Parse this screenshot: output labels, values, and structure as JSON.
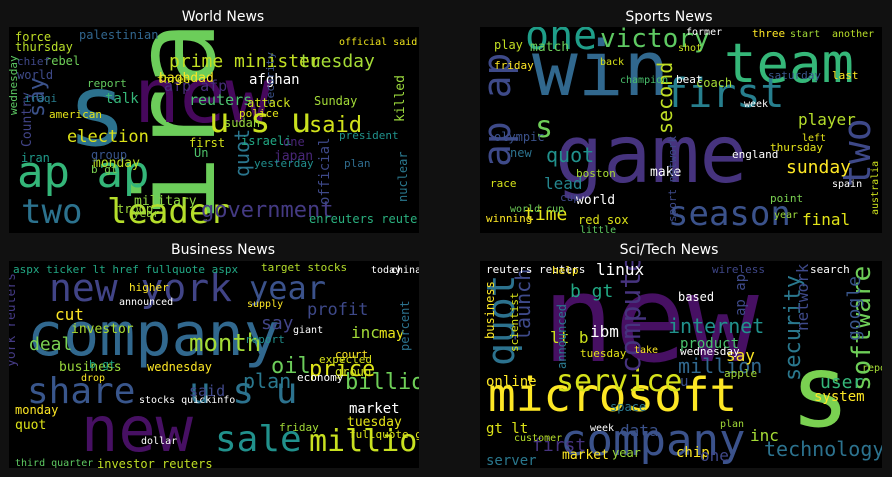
{
  "panels": [
    {
      "id": "world",
      "title": "World News",
      "words": [
        {
          "t": "iraq",
          "c": "#6ccd5a"
        },
        {
          "t": "new",
          "c": "#46085c"
        },
        {
          "t": "s",
          "c": "#2c728e"
        },
        {
          "t": "ap ap",
          "c": "#34b679"
        },
        {
          "t": "two",
          "c": "#2c728e"
        },
        {
          "t": "leader",
          "c": "#b5de2b"
        },
        {
          "t": "government",
          "c": "#443a83"
        },
        {
          "t": "said",
          "c": "#d2e21b"
        },
        {
          "t": "u s u",
          "c": "#cae11f"
        },
        {
          "t": "prime minister",
          "c": "#c2df23"
        },
        {
          "t": "tuesday",
          "c": "#a5db36"
        },
        {
          "t": "election",
          "c": "#dde318"
        },
        {
          "t": "reuters",
          "c": "#4ac16d"
        },
        {
          "t": "say",
          "c": "#3b528b"
        },
        {
          "t": "monday",
          "c": "#bddf26"
        },
        {
          "t": "afp afp",
          "c": "#472d7b"
        },
        {
          "t": "Sunday",
          "c": "#a2da37"
        },
        {
          "t": "quot",
          "c": "#2a768e"
        },
        {
          "t": "talk",
          "c": "#35b779"
        },
        {
          "t": "palestinian",
          "c": "#31668e"
        },
        {
          "t": "force",
          "c": "#c0df25"
        },
        {
          "t": "baghdad",
          "c": "#fde725"
        },
        {
          "t": "afghan",
          "c": "#ffffff"
        },
        {
          "t": "killed",
          "c": "#9bd93c"
        },
        {
          "t": "sudan",
          "c": "#98d83e"
        },
        {
          "t": "israeli",
          "c": "#22a884"
        },
        {
          "t": "iran",
          "c": "#1f9a8a"
        },
        {
          "t": "japan",
          "c": "#482677"
        },
        {
          "t": "military",
          "c": "#8fd744"
        },
        {
          "t": "nuclear",
          "c": "#2a788e"
        },
        {
          "t": "official",
          "c": "#3e4989"
        },
        {
          "t": "Country",
          "c": "#414487"
        },
        {
          "t": "thursday",
          "c": "#b8de29"
        },
        {
          "t": "wednesday",
          "c": "#5cc863"
        },
        {
          "t": "world",
          "c": "#3e4a89"
        },
        {
          "t": "troop",
          "c": "#9dd93b"
        },
        {
          "t": "group",
          "c": "#39558c"
        },
        {
          "t": "first",
          "c": "#d5e21a"
        },
        {
          "t": "police",
          "c": "#e2e418"
        },
        {
          "t": "yesterday",
          "c": "#218f8d"
        },
        {
          "t": "year",
          "c": "#9ad93d"
        },
        {
          "t": "three",
          "c": "#d8e219"
        },
        {
          "t": "security",
          "c": "#3b528b"
        },
        {
          "t": "b gt",
          "c": "#7ad151"
        },
        {
          "t": "rebel",
          "c": "#6ece58"
        },
        {
          "t": "report",
          "c": "#63cb5f"
        },
        {
          "t": "attack",
          "c": "#cde11d"
        },
        {
          "t": "plan",
          "c": "#2f6c8e"
        },
        {
          "t": "Un",
          "c": "#4ec36b"
        },
        {
          "t": "one",
          "c": "#482576"
        },
        {
          "t": "american",
          "c": "#e5e419"
        },
        {
          "t": "iraqi",
          "c": "#287d8e"
        },
        {
          "t": "enreuters reuters",
          "c": "#2ab07f"
        },
        {
          "t": "president",
          "c": "#20928c"
        },
        {
          "t": "chief",
          "c": "#3f4788"
        },
        {
          "t": "official said",
          "c": "#efe51c"
        }
      ]
    },
    {
      "id": "sports",
      "title": "Sports News",
      "words": [
        {
          "t": "game",
          "c": "#46337e"
        },
        {
          "t": "win",
          "c": "#31688e"
        },
        {
          "t": "team",
          "c": "#35b779"
        },
        {
          "t": "one",
          "c": "#1f9e89"
        },
        {
          "t": "victory",
          "c": "#5ec962"
        },
        {
          "t": "first",
          "c": "#277f8e"
        },
        {
          "t": "season",
          "c": "#3b528b"
        },
        {
          "t": "two",
          "c": "#3e4989"
        },
        {
          "t": "ap ap",
          "c": "#3e4a89"
        },
        {
          "t": "s",
          "c": "#6ece58"
        },
        {
          "t": "quot",
          "c": "#21918c"
        },
        {
          "t": "lead",
          "c": "#24868e"
        },
        {
          "t": "time",
          "c": "#e7e419"
        },
        {
          "t": "sunday",
          "c": "#fde725"
        },
        {
          "t": "player",
          "c": "#b5de2b"
        },
        {
          "t": "final",
          "c": "#e2e418"
        },
        {
          "t": "second",
          "c": "#c0df25"
        },
        {
          "t": "match",
          "c": "#6ccd5a"
        },
        {
          "t": "play",
          "c": "#c2df23"
        },
        {
          "t": "friday",
          "c": "#fde725"
        },
        {
          "t": "olympic",
          "c": "#3b528b"
        },
        {
          "t": "new",
          "c": "#2c728e"
        },
        {
          "t": "world",
          "c": "#ffffff"
        },
        {
          "t": "make",
          "c": "#ffffff"
        },
        {
          "t": "red sox",
          "c": "#dde318"
        },
        {
          "t": "saturday",
          "c": "#39568c"
        },
        {
          "t": "last",
          "c": "#fde725"
        },
        {
          "t": "coach",
          "c": "#a5db36"
        },
        {
          "t": "cup",
          "c": "#3f4788"
        },
        {
          "t": "england",
          "c": "#ffffff"
        },
        {
          "t": "thursday",
          "c": "#e5e419"
        },
        {
          "t": "boston",
          "c": "#a8db34"
        },
        {
          "t": "winning",
          "c": "#fde725"
        },
        {
          "t": "beat",
          "c": "#ffffff"
        },
        {
          "t": "australia",
          "c": "#cde11d"
        },
        {
          "t": "spain",
          "c": "#ffffff"
        },
        {
          "t": "three",
          "c": "#fde725"
        },
        {
          "t": "start",
          "c": "#a2da37"
        },
        {
          "t": "another",
          "c": "#b8de29"
        },
        {
          "t": "week",
          "c": "#ffffff"
        },
        {
          "t": "left",
          "c": "#e5e419"
        },
        {
          "t": "back",
          "c": "#d8e219"
        },
        {
          "t": "champion",
          "c": "#4ac16d"
        },
        {
          "t": "race",
          "c": "#d5e21a"
        },
        {
          "t": "world cup",
          "c": "#6ece58"
        },
        {
          "t": "point",
          "c": "#7ad151"
        },
        {
          "t": "year",
          "c": "#9bd93c"
        },
        {
          "t": "former",
          "c": "#ffffff"
        },
        {
          "t": "shot",
          "c": "#c8e020"
        },
        {
          "t": "little",
          "c": "#5ec962"
        },
        {
          "t": "sport network",
          "c": "#3e4a89"
        }
      ]
    },
    {
      "id": "business",
      "title": "Business News",
      "words": [
        {
          "t": "company",
          "c": "#31688e"
        },
        {
          "t": "new york",
          "c": "#414487"
        },
        {
          "t": "year",
          "c": "#3b528b"
        },
        {
          "t": "share",
          "c": "#39568c"
        },
        {
          "t": "new",
          "c": "#471063"
        },
        {
          "t": "sale",
          "c": "#21918c"
        },
        {
          "t": "million",
          "c": "#c8e020"
        },
        {
          "t": "u s u",
          "c": "#2c728e"
        },
        {
          "t": "billion",
          "c": "#6ece58"
        },
        {
          "t": "month",
          "c": "#a5db36"
        },
        {
          "t": "price",
          "c": "#dde318"
        },
        {
          "t": "oil",
          "c": "#6ccd5a"
        },
        {
          "t": "plan",
          "c": "#2a788e"
        },
        {
          "t": "say",
          "c": "#414487"
        },
        {
          "t": "said",
          "c": "#3f4788"
        },
        {
          "t": "deal",
          "c": "#7ad151"
        },
        {
          "t": "profit",
          "c": "#3e4989"
        },
        {
          "t": "inc",
          "c": "#a2da37"
        },
        {
          "t": "may",
          "c": "#e7e419"
        },
        {
          "t": "investor",
          "c": "#aadc32"
        },
        {
          "t": "cut",
          "c": "#fde725"
        },
        {
          "t": "business",
          "c": "#9bd93c"
        },
        {
          "t": "market",
          "c": "#ffffff"
        },
        {
          "t": "tuesday",
          "c": "#e5e419"
        },
        {
          "t": "monday",
          "c": "#fde725"
        },
        {
          "t": "quot",
          "c": "#dde318"
        },
        {
          "t": "york reuters",
          "c": "#443a83"
        },
        {
          "t": "percent",
          "c": "#2c728e"
        },
        {
          "t": "investor reuters",
          "c": "#c0df25"
        },
        {
          "t": "aspx ticker lt href fullquote aspx",
          "c": "#22a884"
        },
        {
          "t": "target stocks",
          "c": "#b5de2b"
        },
        {
          "t": "third quarter",
          "c": "#5ec962"
        },
        {
          "t": "friday",
          "c": "#a2da37"
        },
        {
          "t": "wednesday",
          "c": "#fde725"
        },
        {
          "t": "group",
          "c": "#cde11d"
        },
        {
          "t": "b gt",
          "c": "#22a884"
        },
        {
          "t": "higher",
          "c": "#fde725"
        },
        {
          "t": "announced",
          "c": "#ffffff"
        },
        {
          "t": "expected",
          "c": "#d5e21a"
        },
        {
          "t": "economy",
          "c": "#ffffff"
        },
        {
          "t": "report",
          "c": "#21918c"
        },
        {
          "t": "court",
          "c": "#fde725"
        },
        {
          "t": "fullquote gt",
          "c": "#d8e219"
        },
        {
          "t": "today",
          "c": "#ffffff"
        },
        {
          "t": "china",
          "c": "#ffffff"
        },
        {
          "t": "drop",
          "c": "#fde725"
        },
        {
          "t": "supply",
          "c": "#fde725"
        },
        {
          "t": "giant",
          "c": "#ffffff"
        },
        {
          "t": "stocks quickinfo",
          "c": "#ffffff"
        },
        {
          "t": "dollar",
          "c": "#ffffff"
        }
      ]
    },
    {
      "id": "scitech",
      "title": "Sci/Tech News",
      "words": [
        {
          "t": "new",
          "c": "#471063"
        },
        {
          "t": "s",
          "c": "#7ad151"
        },
        {
          "t": "microsoft",
          "c": "#fde725"
        },
        {
          "t": "company",
          "c": "#3b528b"
        },
        {
          "t": "service",
          "c": "#d5e21a"
        },
        {
          "t": "software",
          "c": "#6ece58"
        },
        {
          "t": "quot",
          "c": "#2c728e"
        },
        {
          "t": "ibm",
          "c": "#ffffff"
        },
        {
          "t": "computer",
          "c": "#46337e"
        },
        {
          "t": "internet",
          "c": "#21918c"
        },
        {
          "t": "security",
          "c": "#2a788e"
        },
        {
          "t": "technology",
          "c": "#2c728e"
        },
        {
          "t": "network",
          "c": "#3e4989"
        },
        {
          "t": "google",
          "c": "#39568c"
        },
        {
          "t": "user",
          "c": "#35b779"
        },
        {
          "t": "million",
          "c": "#31688e"
        },
        {
          "t": "product",
          "c": "#4ac16d"
        },
        {
          "t": "system",
          "c": "#fde725"
        },
        {
          "t": "linux",
          "c": "#ffffff"
        },
        {
          "t": "launch",
          "c": "#3e4a89"
        },
        {
          "t": "b gt",
          "c": "#22a884"
        },
        {
          "t": "lt b",
          "c": "#cde11d"
        },
        {
          "t": "first",
          "c": "#46337e"
        },
        {
          "t": "inc",
          "c": "#a5db36"
        },
        {
          "t": "say",
          "c": "#fde725"
        },
        {
          "t": "data",
          "c": "#3b528b"
        },
        {
          "t": "market",
          "c": "#fde725"
        },
        {
          "t": "year",
          "c": "#9bd93c"
        },
        {
          "t": "chip",
          "c": "#fde725"
        },
        {
          "t": "one",
          "c": "#3f4788"
        },
        {
          "t": "server",
          "c": "#2a788e"
        },
        {
          "t": "gt lt",
          "c": "#dde318"
        },
        {
          "t": "online",
          "c": "#fde725"
        },
        {
          "t": "business",
          "c": "#fde725"
        },
        {
          "t": "scientist",
          "c": "#d8e219"
        },
        {
          "t": "announced",
          "c": "#2a788e"
        },
        {
          "t": "tuesday",
          "c": "#e2e418"
        },
        {
          "t": "wednesday",
          "c": "#ffffff"
        },
        {
          "t": "ap ap",
          "c": "#3e4a89"
        },
        {
          "t": "u",
          "c": "#3b528b"
        },
        {
          "t": "search",
          "c": "#ffffff"
        },
        {
          "t": "wireless",
          "c": "#3f4788"
        },
        {
          "t": "reuters reuters",
          "c": "#ffffff"
        },
        {
          "t": "help",
          "c": "#fde725"
        },
        {
          "t": "based",
          "c": "#ffffff"
        },
        {
          "t": "space",
          "c": "#2a788e"
        },
        {
          "t": "customer",
          "c": "#b5de2b"
        },
        {
          "t": "apple",
          "c": "#a2da37"
        },
        {
          "t": "take",
          "c": "#fde725"
        },
        {
          "t": "plan",
          "c": "#a2da37"
        },
        {
          "t": "week",
          "c": "#ffffff"
        },
        {
          "t": "report",
          "c": "#a5db36"
        }
      ]
    }
  ]
}
